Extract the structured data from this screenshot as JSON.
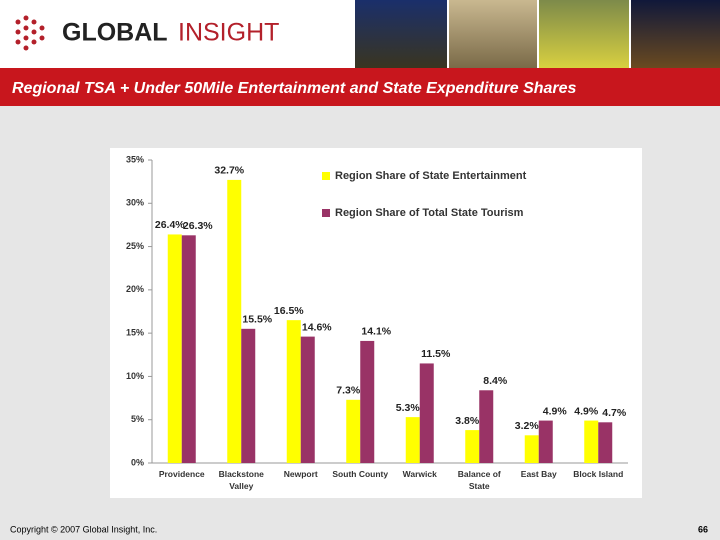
{
  "header": {
    "logo_part1": "GLOBAL",
    "logo_part2": "INSIGHT"
  },
  "chart_data": {
    "type": "bar",
    "title": "Regional TSA + Under 50Mile Entertainment and State Expenditure Shares",
    "categories": [
      "Providence",
      "Blackstone Valley",
      "Newport",
      "South County",
      "Warwick",
      "Balance of State",
      "East Bay",
      "Block Island"
    ],
    "series": [
      {
        "name": "Region Share of State Entertainment",
        "color": "#ffff00",
        "values": [
          26.4,
          32.7,
          16.5,
          7.3,
          5.3,
          3.8,
          3.2,
          4.9
        ],
        "value_labels": [
          "26.4%",
          "32.7%",
          "16.5%",
          "7.3%",
          "5.3%",
          "3.8%",
          "3.2%",
          "4.9%"
        ]
      },
      {
        "name": "Region Share of Total State Tourism",
        "color": "#993366",
        "values": [
          26.3,
          15.5,
          14.6,
          14.1,
          11.5,
          8.4,
          4.9,
          4.7
        ],
        "value_labels": [
          "26.3%",
          "15.5%",
          "14.6%",
          "14.1%",
          "11.5%",
          "8.4%",
          "4.9%",
          "4.7%"
        ]
      }
    ],
    "ylim": [
      0,
      35
    ],
    "yticks": [
      {
        "value": 0,
        "label": "0%"
      },
      {
        "value": 5,
        "label": "5%"
      },
      {
        "value": 10,
        "label": "10%"
      },
      {
        "value": 15,
        "label": "15%"
      },
      {
        "value": 20,
        "label": "20%"
      },
      {
        "value": 25,
        "label": "25%"
      },
      {
        "value": 30,
        "label": "30%"
      },
      {
        "value": 35,
        "label": "35%"
      }
    ],
    "legend": "upper right"
  },
  "footer": {
    "copyright": "Copyright © 2007 Global Insight, Inc.",
    "page": "66"
  }
}
